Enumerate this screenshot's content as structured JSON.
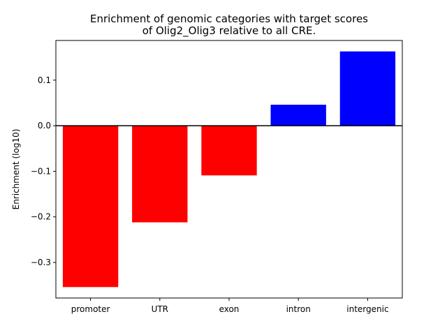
{
  "chart_data": {
    "type": "bar",
    "title": "Enrichment of genomic categories with target scores\nof Olig2_Olig3 relative to all CRE.",
    "xlabel": "",
    "ylabel": "Enrichment (log10)",
    "categories": [
      "promoter",
      "UTR",
      "exon",
      "intron",
      "intergenic"
    ],
    "values": [
      -0.354,
      -0.212,
      -0.109,
      0.046,
      0.163
    ],
    "colors": [
      "#ff0000",
      "#ff0000",
      "#ff0000",
      "#0000ff",
      "#0000ff"
    ],
    "ylim": [
      -0.378,
      0.187
    ],
    "yticks": [
      -0.3,
      -0.2,
      -0.1,
      0.0,
      0.1
    ],
    "ytick_labels": [
      "−0.3",
      "−0.2",
      "−0.1",
      "0.0",
      "0.1"
    ],
    "baseline": 0.0,
    "grid": false,
    "legend": "none"
  }
}
